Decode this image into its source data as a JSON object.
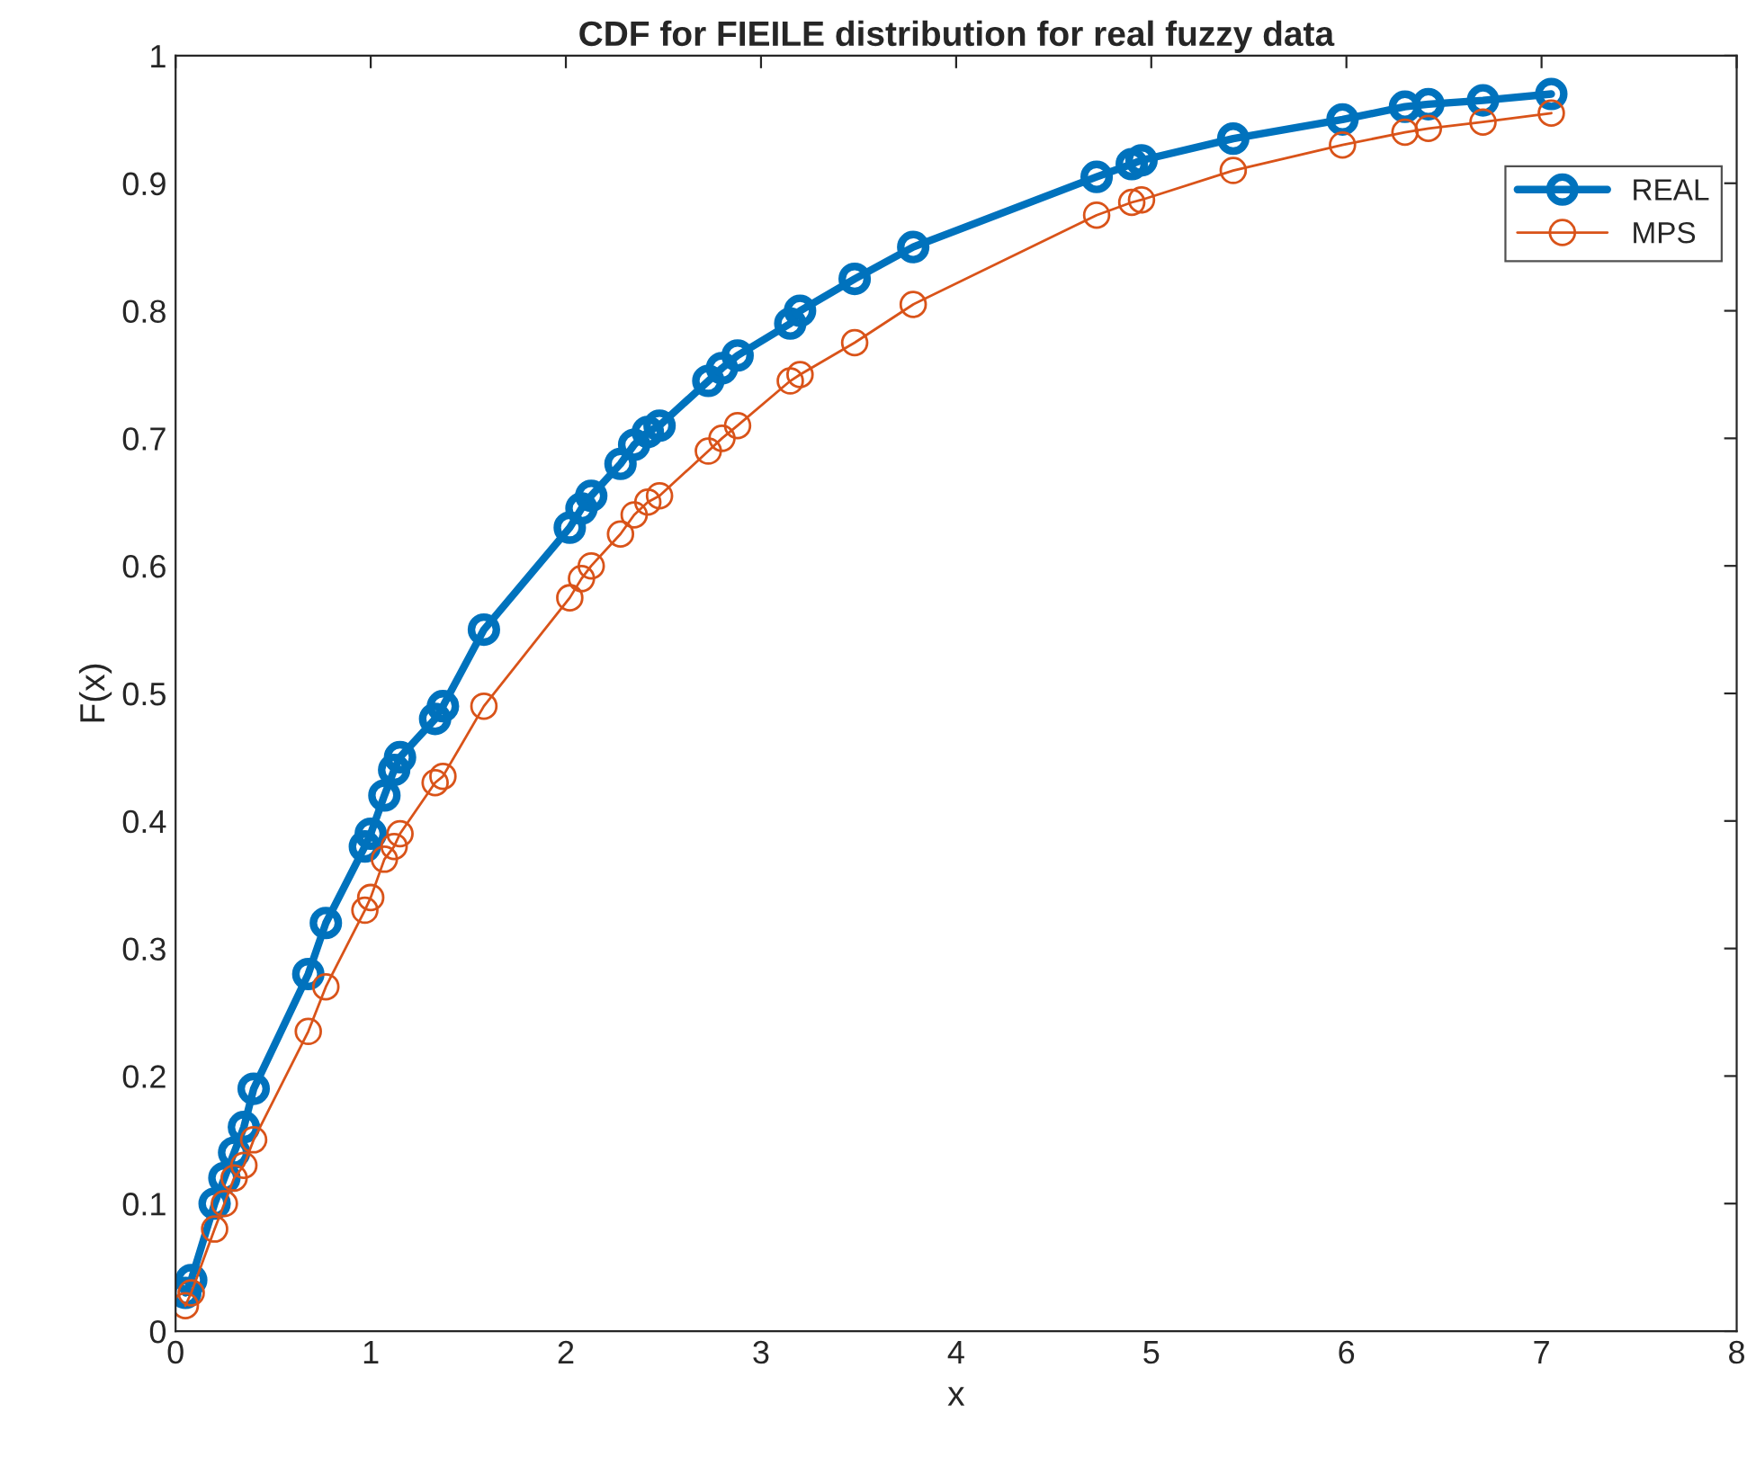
{
  "chart_data": {
    "type": "line",
    "title": "CDF for FIEILE distribution for real fuzzy data",
    "xlabel": "x",
    "ylabel": "F(x)",
    "x": [
      0.05,
      0.08,
      0.2,
      0.25,
      0.3,
      0.35,
      0.4,
      0.68,
      0.77,
      0.97,
      1.0,
      1.07,
      1.12,
      1.15,
      1.33,
      1.37,
      1.58,
      2.02,
      2.08,
      2.13,
      2.28,
      2.35,
      2.42,
      2.48,
      2.73,
      2.8,
      2.88,
      3.15,
      3.2,
      3.48,
      3.78,
      4.72,
      4.9,
      4.95,
      5.42,
      5.98,
      6.3,
      6.42,
      6.7,
      7.05
    ],
    "series": [
      {
        "name": "REAL",
        "color": "#0072bd",
        "values": [
          0.03,
          0.04,
          0.1,
          0.12,
          0.14,
          0.16,
          0.19,
          0.28,
          0.32,
          0.38,
          0.39,
          0.42,
          0.44,
          0.45,
          0.48,
          0.49,
          0.55,
          0.63,
          0.645,
          0.655,
          0.68,
          0.695,
          0.705,
          0.71,
          0.745,
          0.755,
          0.765,
          0.79,
          0.8,
          0.825,
          0.85,
          0.905,
          0.915,
          0.918,
          0.935,
          0.95,
          0.96,
          0.962,
          0.965,
          0.97
        ]
      },
      {
        "name": "MPS",
        "color": "#d95319",
        "values": [
          0.02,
          0.03,
          0.08,
          0.1,
          0.12,
          0.13,
          0.15,
          0.235,
          0.27,
          0.33,
          0.34,
          0.37,
          0.38,
          0.39,
          0.43,
          0.435,
          0.49,
          0.575,
          0.59,
          0.6,
          0.625,
          0.64,
          0.65,
          0.655,
          0.69,
          0.7,
          0.71,
          0.745,
          0.75,
          0.775,
          0.805,
          0.875,
          0.885,
          0.887,
          0.91,
          0.93,
          0.94,
          0.943,
          0.948,
          0.955
        ]
      }
    ],
    "xlim": [
      0,
      8
    ],
    "xticks": [
      0,
      1,
      2,
      3,
      4,
      5,
      6,
      7,
      8
    ],
    "ylim": [
      0,
      1
    ],
    "yticks": [
      0,
      0.1,
      0.2,
      0.3,
      0.4,
      0.5,
      0.6,
      0.7,
      0.8,
      0.9,
      1
    ],
    "grid": false,
    "legend": "top right",
    "marker": "circle",
    "line_style": "solid"
  }
}
